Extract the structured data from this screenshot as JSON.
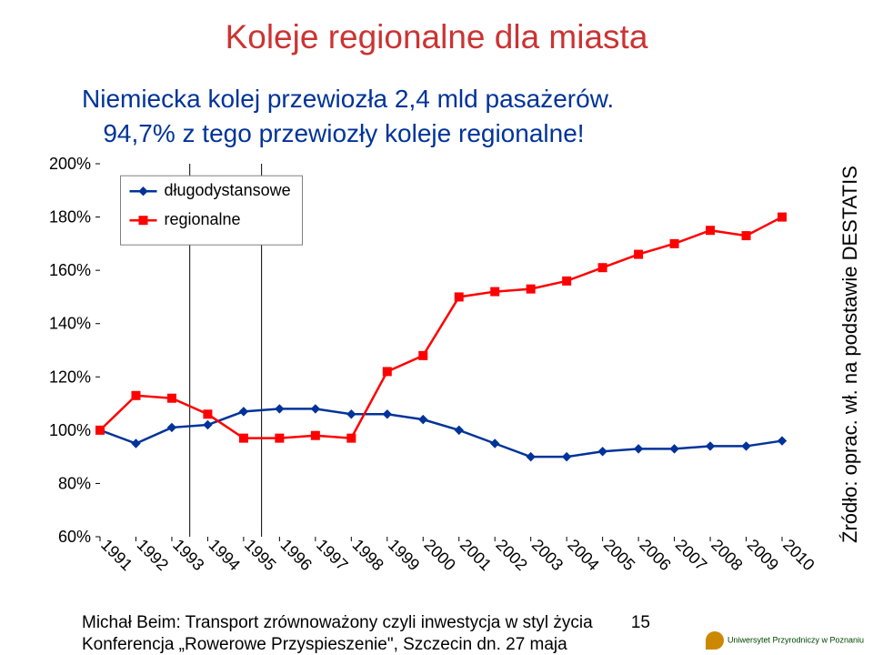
{
  "title": "Koleje regionalne dla miasta",
  "subtitle_line1": "Niemiecka kolej przewiozła 2,4 mld pasażerów.",
  "subtitle_line2": "94,7% z tego przewiozły koleje regionalne!",
  "source": "Źródło: oprac. wł. na podstawie DESTATIS",
  "footer1": "Michał Beim: Transport zrównoważony czyli inwestycja w styl życia",
  "footer2": "Konferencja „Rowerowe Przyspieszenie\", Szczecin dn. 27 maja",
  "page_num": "15",
  "uni": "Uniwersytet Przyrodniczy w Poznaniu",
  "chart": {
    "type": "line",
    "background_color": "#ffffff",
    "plot_border_color": "none",
    "axis_color": "#000000",
    "axis_fontsize": 18,
    "ylim": [
      60,
      200
    ],
    "ytick_step": 20,
    "yticks": [
      "60%",
      "80%",
      "100%",
      "120%",
      "140%",
      "160%",
      "180%",
      "200%"
    ],
    "xlabels": [
      "1991",
      "1992",
      "1993",
      "1994",
      "1995",
      "1996",
      "1997",
      "1998",
      "1999",
      "2000",
      "2001",
      "2002",
      "2003",
      "2004",
      "2005",
      "2006",
      "2007",
      "2008",
      "2009",
      "2010"
    ],
    "x_label_rotation": -45,
    "legend": {
      "x": 0.07,
      "y_top": 0.98,
      "border_color": "#808080",
      "bg_color": "#ffffff",
      "fontsize": 18,
      "items": [
        {
          "label": "długodystansowe",
          "color": "#003399",
          "marker": "diamond"
        },
        {
          "label": "regionalne",
          "color": "#ff0000",
          "marker": "square"
        }
      ]
    },
    "vlines": [
      {
        "x_index": 2.5,
        "color": "#000000",
        "width": 1
      },
      {
        "x_index": 4.5,
        "color": "#000000",
        "width": 1
      }
    ],
    "series": [
      {
        "name": "długodystansowe",
        "color": "#003399",
        "line_width": 2.5,
        "marker": "diamond",
        "marker_size": 9,
        "values": [
          100,
          95,
          101,
          102,
          107,
          108,
          108,
          106,
          106,
          104,
          100,
          95,
          90,
          90,
          92,
          93,
          93,
          94,
          94,
          96
        ]
      },
      {
        "name": "regionalne",
        "color": "#ff0000",
        "line_width": 2.5,
        "marker": "square",
        "marker_size": 9,
        "values": [
          100,
          113,
          112,
          106,
          97,
          97,
          98,
          97,
          122,
          128,
          150,
          152,
          153,
          156,
          161,
          166,
          170,
          175,
          173,
          180
        ]
      }
    ]
  }
}
